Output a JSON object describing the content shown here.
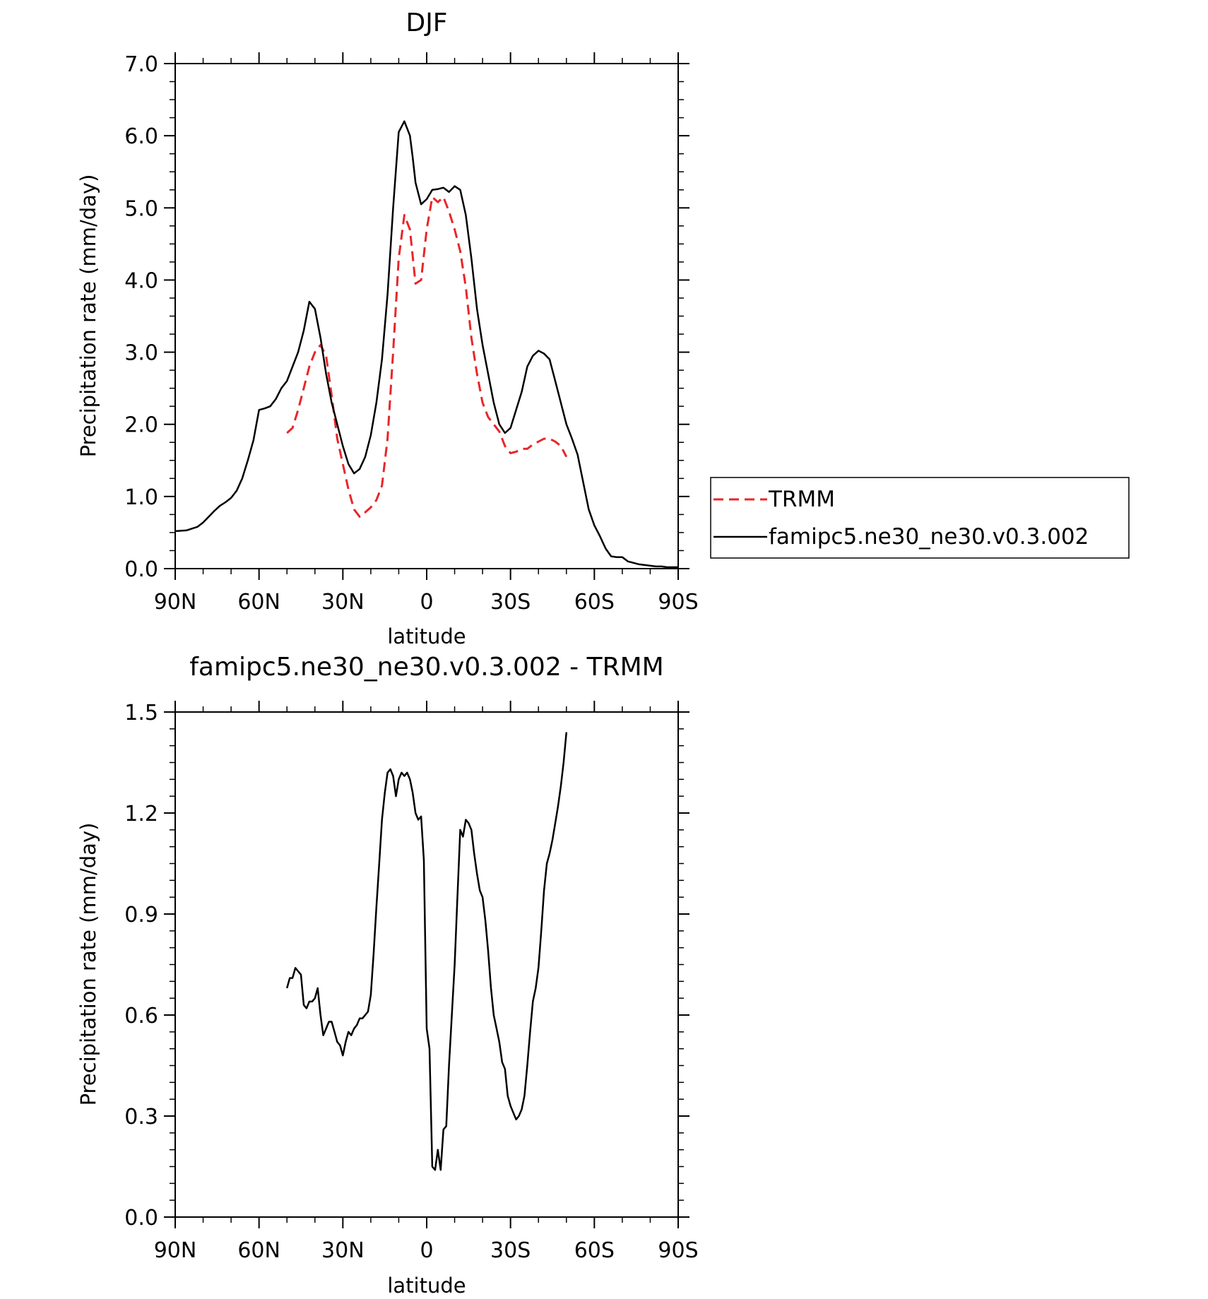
{
  "chart_data": [
    {
      "type": "line",
      "title": "DJF",
      "xlabel": "latitude",
      "ylabel": "Precipitation rate (mm/day)",
      "xlim": [
        90,
        -90
      ],
      "ylim": [
        0,
        7
      ],
      "x_ticks": [
        90,
        60,
        30,
        0,
        -30,
        -60,
        -90
      ],
      "x_tick_labels": [
        "90N",
        "60N",
        "30N",
        "0",
        "30S",
        "60S",
        "90S"
      ],
      "y_ticks": [
        0,
        1,
        2,
        3,
        4,
        5,
        6,
        7
      ],
      "y_tick_labels": [
        "0.0",
        "1.0",
        "2.0",
        "3.0",
        "4.0",
        "5.0",
        "6.0",
        "7.0"
      ],
      "legend_position": "right",
      "series": [
        {
          "name": "TRMM",
          "color": "#e8262a",
          "dash": "dashed",
          "x": [
            50,
            48,
            46,
            44,
            42,
            40,
            38,
            36,
            34,
            32,
            30,
            28,
            26,
            24,
            22,
            20,
            18,
            16,
            14,
            12,
            10,
            8,
            6,
            4,
            2,
            0,
            -2,
            -4,
            -6,
            -8,
            -10,
            -12,
            -14,
            -16,
            -18,
            -20,
            -22,
            -24,
            -26,
            -28,
            -30,
            -32,
            -34,
            -36,
            -38,
            -40,
            -42,
            -44,
            -46,
            -48,
            -50
          ],
          "y": [
            1.88,
            1.95,
            2.2,
            2.5,
            2.8,
            3.0,
            3.1,
            2.95,
            2.4,
            1.8,
            1.45,
            1.1,
            0.82,
            0.72,
            0.78,
            0.85,
            0.95,
            1.15,
            1.8,
            3.0,
            4.3,
            4.9,
            4.7,
            3.95,
            4.0,
            4.7,
            5.15,
            5.08,
            5.15,
            4.95,
            4.7,
            4.4,
            3.9,
            3.2,
            2.7,
            2.3,
            2.1,
            2.0,
            1.9,
            1.7,
            1.6,
            1.62,
            1.66,
            1.66,
            1.72,
            1.76,
            1.8,
            1.8,
            1.76,
            1.7,
            1.55
          ]
        },
        {
          "name": "famipc5.ne30_ne30.v0.3.002",
          "color": "#000000",
          "dash": "solid",
          "x": [
            90,
            86,
            82,
            80,
            78,
            76,
            74,
            72,
            70,
            68,
            66,
            64,
            62,
            60,
            58,
            56,
            54,
            52,
            50,
            48,
            46,
            44,
            42,
            40,
            38,
            36,
            34,
            32,
            30,
            28,
            26,
            24,
            22,
            20,
            18,
            16,
            14,
            12,
            10,
            8,
            6,
            5,
            4,
            2,
            0,
            -2,
            -4,
            -6,
            -8,
            -10,
            -12,
            -14,
            -16,
            -18,
            -20,
            -22,
            -24,
            -26,
            -28,
            -30,
            -32,
            -34,
            -36,
            -38,
            -40,
            -42,
            -44,
            -46,
            -48,
            -50,
            -52,
            -54,
            -56,
            -58,
            -60,
            -62,
            -64,
            -66,
            -68,
            -70,
            -72,
            -74,
            -76,
            -78,
            -80,
            -82,
            -84,
            -86,
            -88,
            -90
          ],
          "y": [
            0.52,
            0.53,
            0.58,
            0.64,
            0.72,
            0.8,
            0.87,
            0.92,
            0.98,
            1.08,
            1.25,
            1.5,
            1.78,
            2.2,
            2.22,
            2.25,
            2.35,
            2.5,
            2.6,
            2.8,
            3.0,
            3.3,
            3.7,
            3.6,
            3.2,
            2.7,
            2.3,
            2.0,
            1.7,
            1.45,
            1.32,
            1.38,
            1.55,
            1.85,
            2.3,
            2.9,
            3.8,
            5.0,
            6.05,
            6.2,
            6.0,
            5.7,
            5.35,
            5.05,
            5.12,
            5.25,
            5.26,
            5.28,
            5.22,
            5.3,
            5.25,
            4.9,
            4.3,
            3.6,
            3.1,
            2.7,
            2.3,
            2.0,
            1.88,
            1.95,
            2.2,
            2.45,
            2.8,
            2.95,
            3.02,
            2.98,
            2.9,
            2.6,
            2.3,
            2.0,
            1.8,
            1.58,
            1.2,
            0.82,
            0.6,
            0.45,
            0.28,
            0.17,
            0.16,
            0.16,
            0.1,
            0.08,
            0.06,
            0.05,
            0.04,
            0.03,
            0.03,
            0.02,
            0.02,
            0.02
          ]
        }
      ]
    },
    {
      "type": "line",
      "title": "famipc5.ne30_ne30.v0.3.002 - TRMM",
      "xlabel": "latitude",
      "ylabel": "Precipitation rate (mm/day)",
      "xlim": [
        90,
        -90
      ],
      "ylim": [
        0,
        1.5
      ],
      "x_ticks": [
        90,
        60,
        30,
        0,
        -30,
        -60,
        -90
      ],
      "x_tick_labels": [
        "90N",
        "60N",
        "30N",
        "0",
        "30S",
        "60S",
        "90S"
      ],
      "y_ticks": [
        0,
        0.3,
        0.6,
        0.9,
        1.2,
        1.5
      ],
      "y_tick_labels": [
        "0.0",
        "0.3",
        "0.6",
        "0.9",
        "1.2",
        "1.5"
      ],
      "series": [
        {
          "color": "#000000",
          "dash": "solid",
          "x": [
            50,
            49,
            48,
            47,
            46,
            45,
            44,
            43,
            42,
            41,
            40,
            39,
            38,
            37,
            36,
            35,
            34,
            33,
            32,
            31,
            30,
            29,
            28,
            27,
            26,
            25,
            24,
            23,
            22,
            21,
            20,
            19,
            18,
            17,
            16,
            15,
            14,
            13,
            12,
            11,
            10,
            9,
            8,
            7,
            6,
            5,
            4,
            3,
            2,
            1,
            0,
            -1,
            -2,
            -3,
            -4,
            -5,
            -6,
            -7,
            -8,
            -9,
            -10,
            -11,
            -12,
            -13,
            -14,
            -15,
            -16,
            -17,
            -18,
            -19,
            -20,
            -21,
            -22,
            -23,
            -24,
            -25,
            -26,
            -27,
            -28,
            -29,
            -30,
            -31,
            -32,
            -33,
            -34,
            -35,
            -36,
            -37,
            -38,
            -39,
            -40,
            -41,
            -42,
            -43,
            -44,
            -45,
            -46,
            -47,
            -48,
            -49,
            -50
          ],
          "y": [
            0.68,
            0.71,
            0.71,
            0.74,
            0.73,
            0.72,
            0.63,
            0.62,
            0.64,
            0.64,
            0.65,
            0.68,
            0.6,
            0.54,
            0.56,
            0.58,
            0.58,
            0.55,
            0.52,
            0.51,
            0.48,
            0.52,
            0.55,
            0.54,
            0.56,
            0.57,
            0.59,
            0.59,
            0.6,
            0.61,
            0.66,
            0.78,
            0.92,
            1.05,
            1.18,
            1.26,
            1.32,
            1.33,
            1.31,
            1.25,
            1.3,
            1.32,
            1.31,
            1.32,
            1.3,
            1.26,
            1.2,
            1.18,
            1.19,
            1.06,
            0.56,
            0.5,
            0.15,
            0.14,
            0.2,
            0.14,
            0.26,
            0.27,
            0.45,
            0.6,
            0.75,
            0.95,
            1.15,
            1.13,
            1.18,
            1.17,
            1.15,
            1.08,
            1.02,
            0.97,
            0.95,
            0.88,
            0.79,
            0.68,
            0.6,
            0.56,
            0.52,
            0.46,
            0.44,
            0.36,
            0.33,
            0.31,
            0.29,
            0.3,
            0.32,
            0.36,
            0.45,
            0.55,
            0.64,
            0.68,
            0.74,
            0.85,
            0.97,
            1.05,
            1.08,
            1.12,
            1.17,
            1.22,
            1.28,
            1.35,
            1.44
          ]
        }
      ]
    }
  ]
}
